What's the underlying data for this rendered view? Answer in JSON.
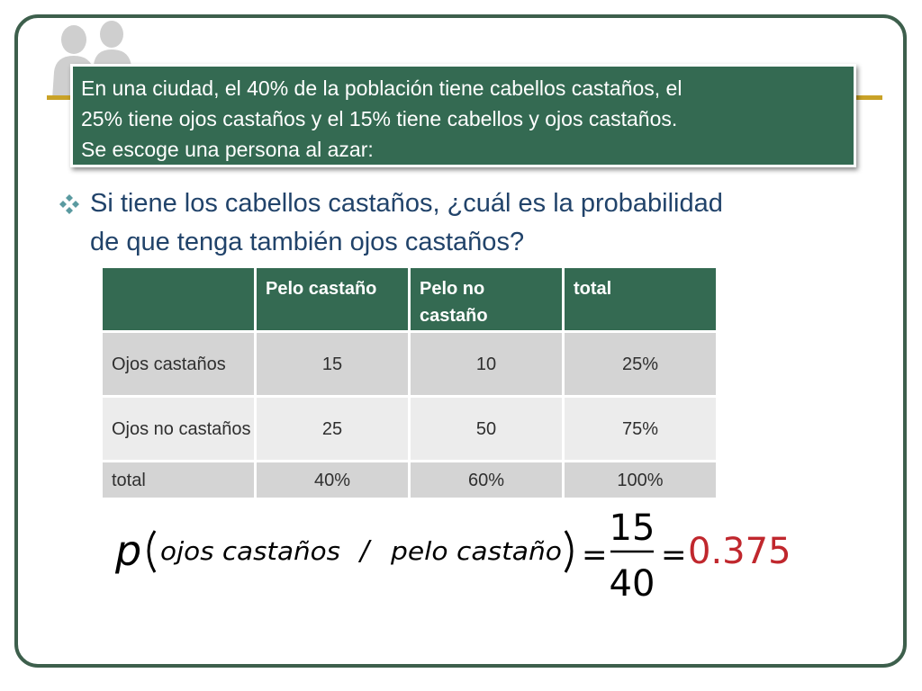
{
  "intro": {
    "lines": [
      "En una ciudad, el 40% de la población tiene cabellos castaños, el",
      "25% tiene ojos castaños y el 15% tiene cabellos y ojos castaños.",
      "Se escoge una persona al azar:"
    ]
  },
  "question": {
    "bullet_icon": "diamond-bullet-icon",
    "lines": [
      "Si tiene los cabellos castaños, ¿cuál es la probabilidad",
      "de que tenga también ojos castaños?"
    ]
  },
  "table": {
    "headers": [
      "",
      "Pelo castaño",
      "Pelo no castaño",
      "total"
    ],
    "rows": [
      {
        "label": "Ojos castaños",
        "cells": [
          "15",
          "10",
          "25%"
        ]
      },
      {
        "label": "Ojos no castaños",
        "cells": [
          "25",
          "50",
          "75%"
        ]
      },
      {
        "label": "total",
        "cells": [
          "40%",
          "60%",
          "100%"
        ]
      }
    ]
  },
  "formula": {
    "p": "p",
    "condition": "ojos castaños",
    "slash": "/",
    "given": "pelo castaño",
    "equals": "=",
    "numerator": "15",
    "denominator": "40",
    "result": "0.375"
  },
  "colors": {
    "frame": "#3d5f4c",
    "header_green": "#346a52",
    "accent_gold": "#c9a227",
    "question_blue": "#21436a",
    "result_red": "#c0272d"
  }
}
